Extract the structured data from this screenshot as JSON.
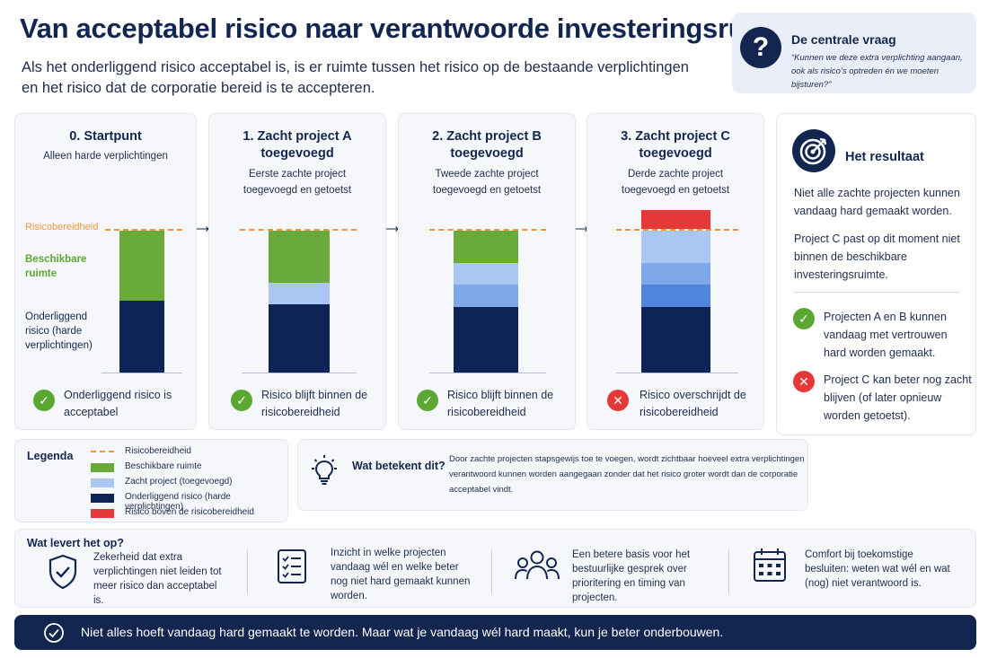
{
  "header": {
    "title": "Van acceptabel risico naar verantwoorde investeringsruimte",
    "subtitle": "Als het onderliggend risico acceptabel is, is er ruimte tussen het risico op de bestaande verplichtingen en het risico dat de corporatie bereid is te accepteren."
  },
  "question": {
    "icon": "question-icon",
    "title": "De centrale vraag",
    "text": "“Kunnen we deze extra verplichting aangaan, ook als risico’s optreden én we moeten bijsturen?”"
  },
  "axis_labels": {
    "threshold": "Risicobereidheid",
    "available": "Beschikbare ruimte",
    "underlying": "Onderliggend risico (harde verplichtingen)"
  },
  "colors": {
    "threshold": "#f0963c",
    "available": "#6aaa3a",
    "project_light": "#a9c7f2",
    "project_mid": "#7fa8e8",
    "project_dark": "#4f86dc",
    "underlying": "#0e2456",
    "over": "#e53939"
  },
  "steps": [
    {
      "title": "0. Startpunt",
      "subtitle": "Alleen harde verplichtingen",
      "status": "Onderliggend risico is acceptabel",
      "status_icon": "check-icon",
      "ok": true
    },
    {
      "title": "1. Zacht project A toegevoegd",
      "subtitle": "Eerste zachte project toegevoegd en getoetst",
      "status": "Risico blijft binnen de risicobereidheid",
      "status_icon": "check-icon",
      "ok": true
    },
    {
      "title": "2. Zacht project B toegevoegd",
      "subtitle": "Tweede zachte project toegevoegd en getoetst",
      "status": "Risico blijft binnen de risicobereidheid",
      "status_icon": "check-icon",
      "ok": true
    },
    {
      "title": "3. Zacht project C toegevoegd",
      "subtitle": "Derde zachte project toegevoegd en getoetst",
      "status": "Risico overschrijdt de risicobereidheid",
      "status_icon": "cross-icon",
      "ok": false
    }
  ],
  "result": {
    "icon": "target-icon",
    "title": "Het resultaat",
    "p1": "Niet alle zachte projecten kunnen vandaag hard gemaakt worden.",
    "p2": "Project C past op dit moment niet binnen de beschikbare investeringsruimte.",
    "ok_text": "Projecten A en B kunnen vandaag met vertrouwen hard worden gemaakt.",
    "no_text": "Project C kan beter nog zacht blijven (of later opnieuw worden getoetst)."
  },
  "legend": {
    "title": "Legenda",
    "items": [
      "Risicobereidheid",
      "Beschikbare ruimte",
      "Zacht project (toegevoegd)",
      "Onderliggend risico (harde verplichtingen)",
      "Risico boven de risicobereidheid"
    ]
  },
  "meaning": {
    "icon": "lightbulb-icon",
    "title": "Wat betekent dit?",
    "text": "Door zachte projecten stapsgewijs toe te voegen, wordt zichtbaar hoeveel extra verplichtingen verantwoord kunnen worden aangegaan zonder dat het risico groter wordt dan de corporatie acceptabel vindt."
  },
  "benefits": {
    "title": "Wat levert het op?",
    "items": [
      {
        "icon": "shield-check-icon",
        "text": "Zekerheid dat extra verplichtingen niet leiden tot meer risico dan acceptabel is."
      },
      {
        "icon": "checklist-icon",
        "text": "Inzicht in welke projecten vandaag wél en welke beter nog niet hard gemaakt kunnen worden."
      },
      {
        "icon": "people-icon",
        "text": "Een betere basis voor het bestuurlijke gesprek over prioritering en timing van projecten."
      },
      {
        "icon": "calendar-icon",
        "text": "Comfort bij toekomstige besluiten: weten wat wél en wat (nog) niet verantwoord is."
      }
    ]
  },
  "footer": {
    "icon": "check-circle-icon",
    "text": "Niet alles hoeft vandaag hard gemaakt te worden. Maar wat je vandaag wél hard maakt, kun je beter onderbouwen."
  }
}
